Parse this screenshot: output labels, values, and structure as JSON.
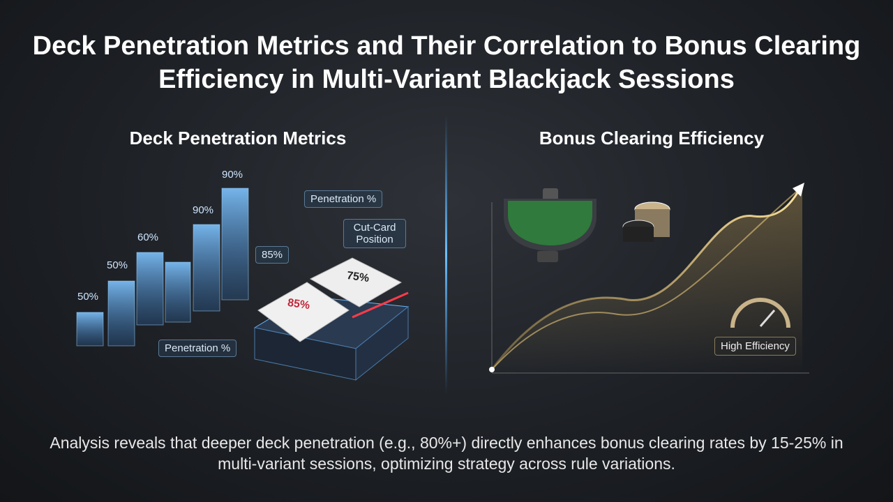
{
  "title": "Deck Penetration Metrics and Their Correlation to Bonus Clearing Efficiency in Multi-Variant Blackjack Sessions",
  "left_panel": {
    "heading": "Deck Penetration Metrics",
    "bar_labels": [
      "50%",
      "50%",
      "60%",
      "90%",
      "90%"
    ],
    "callouts": [
      "Penetration %",
      "Cut-Card Position",
      "85%",
      "Penetration %"
    ],
    "card_labels": [
      "85%",
      "75%"
    ]
  },
  "right_panel": {
    "heading": "Bonus Clearing Efficiency",
    "badge": "High Efficiency"
  },
  "summary": "Analysis reveals that deeper deck penetration (e.g., 80%+) directly enhances bonus clearing rates by 15-25% in multi-variant sessions, optimizing strategy across rule variations."
}
